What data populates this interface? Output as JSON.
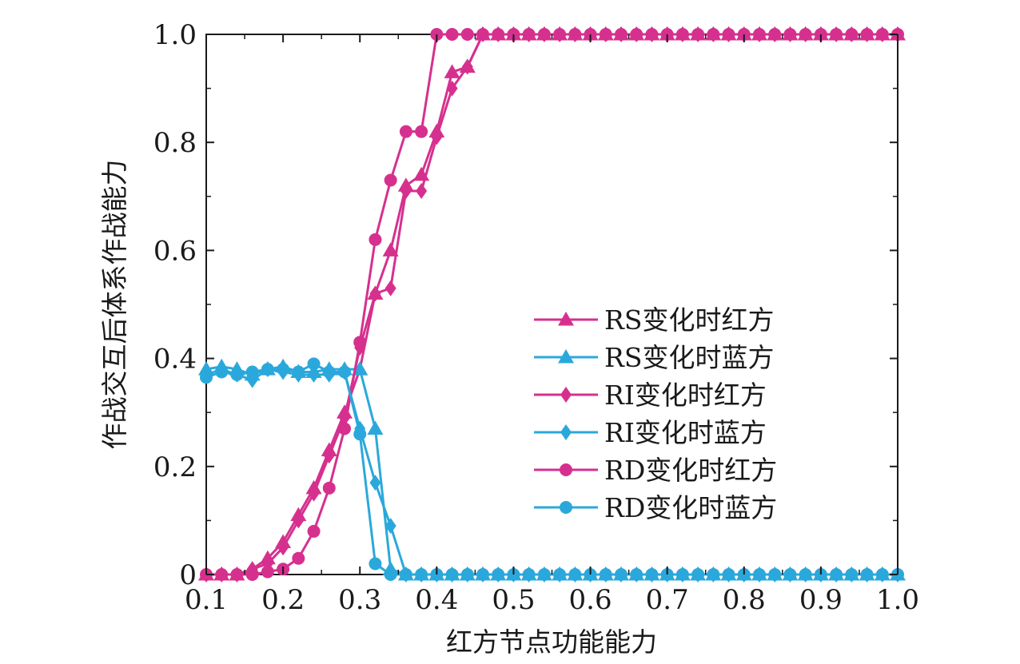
{
  "chart_data": {
    "type": "line",
    "title": "",
    "xlabel": "红方节点功能能力",
    "ylabel": "作战交互后体系作战能力",
    "xlim": [
      0.1,
      1.0
    ],
    "ylim": [
      0,
      1.0
    ],
    "xticks": [
      0.1,
      0.2,
      0.3,
      0.4,
      0.5,
      0.6,
      0.7,
      0.8,
      0.9,
      1.0
    ],
    "xtick_labels": [
      "0.1",
      "0.2",
      "0.3",
      "0.4",
      "0.5",
      "0.6",
      "0.7",
      "0.8",
      "0.9",
      "1.0"
    ],
    "yticks": [
      0,
      0.2,
      0.4,
      0.6,
      0.8,
      1.0
    ],
    "ytick_labels": [
      "0",
      "0.2",
      "0.4",
      "0.6",
      "0.8",
      "1.0"
    ],
    "grid": false,
    "legend_position": "center-right",
    "x": [
      0.1,
      0.12,
      0.14,
      0.16,
      0.18,
      0.2,
      0.22,
      0.24,
      0.26,
      0.28,
      0.3,
      0.32,
      0.34,
      0.36,
      0.38,
      0.4,
      0.42,
      0.44,
      0.46,
      0.48,
      0.5,
      0.52,
      0.54,
      0.56,
      0.58,
      0.6,
      0.62,
      0.64,
      0.66,
      0.68,
      0.7,
      0.72,
      0.74,
      0.76,
      0.78,
      0.8,
      0.82,
      0.84,
      0.86,
      0.88,
      0.9,
      0.92,
      0.94,
      0.96,
      0.98,
      1.0
    ],
    "series": [
      {
        "name": "RS变化时红方",
        "color": "#d6308f",
        "marker": "triangle",
        "values": [
          0,
          0,
          0,
          0.01,
          0.03,
          0.06,
          0.11,
          0.16,
          0.23,
          0.3,
          0.38,
          0.52,
          0.6,
          0.72,
          0.74,
          0.82,
          0.93,
          0.94,
          1.0,
          1.0,
          1.0,
          1.0,
          1.0,
          1.0,
          1.0,
          1.0,
          1.0,
          1.0,
          1.0,
          1.0,
          1.0,
          1.0,
          1.0,
          1.0,
          1.0,
          1.0,
          1.0,
          1.0,
          1.0,
          1.0,
          1.0,
          1.0,
          1.0,
          1.0,
          1.0,
          1.0
        ]
      },
      {
        "name": "RS变化时蓝方",
        "color": "#2ba8db",
        "marker": "triangle",
        "values": [
          0.38,
          0.385,
          0.38,
          0.37,
          0.38,
          0.385,
          0.375,
          0.375,
          0.38,
          0.38,
          0.38,
          0.27,
          0.01,
          0,
          0,
          0,
          0,
          0,
          0,
          0,
          0,
          0,
          0,
          0,
          0,
          0,
          0,
          0,
          0,
          0,
          0,
          0,
          0,
          0,
          0,
          0,
          0,
          0,
          0,
          0,
          0,
          0,
          0,
          0,
          0,
          0
        ]
      },
      {
        "name": "RI变化时红方",
        "color": "#d6308f",
        "marker": "diamond",
        "values": [
          0,
          0,
          0,
          0.01,
          0.02,
          0.05,
          0.1,
          0.15,
          0.22,
          0.29,
          0.42,
          0.52,
          0.53,
          0.71,
          0.71,
          0.81,
          0.9,
          0.94,
          1.0,
          1.0,
          1.0,
          1.0,
          1.0,
          1.0,
          1.0,
          1.0,
          1.0,
          1.0,
          1.0,
          1.0,
          1.0,
          1.0,
          1.0,
          1.0,
          1.0,
          1.0,
          1.0,
          1.0,
          1.0,
          1.0,
          1.0,
          1.0,
          1.0,
          1.0,
          1.0,
          1.0
        ]
      },
      {
        "name": "RI变化时蓝方",
        "color": "#2ba8db",
        "marker": "diamond",
        "values": [
          0.37,
          0.38,
          0.37,
          0.36,
          0.38,
          0.375,
          0.37,
          0.37,
          0.37,
          0.375,
          0.27,
          0.17,
          0.09,
          0,
          0,
          0,
          0,
          0,
          0,
          0,
          0,
          0,
          0,
          0,
          0,
          0,
          0,
          0,
          0,
          0,
          0,
          0,
          0,
          0,
          0,
          0,
          0,
          0,
          0,
          0,
          0,
          0,
          0,
          0,
          0,
          0
        ]
      },
      {
        "name": "RD变化时红方",
        "color": "#d6308f",
        "marker": "circle",
        "values": [
          0,
          0,
          0,
          0,
          0.005,
          0.01,
          0.03,
          0.08,
          0.16,
          0.27,
          0.43,
          0.62,
          0.73,
          0.82,
          0.82,
          1.0,
          1.0,
          1.0,
          1.0,
          1.0,
          1.0,
          1.0,
          1.0,
          1.0,
          1.0,
          1.0,
          1.0,
          1.0,
          1.0,
          1.0,
          1.0,
          1.0,
          1.0,
          1.0,
          1.0,
          1.0,
          1.0,
          1.0,
          1.0,
          1.0,
          1.0,
          1.0,
          1.0,
          1.0,
          1.0,
          1.0
        ]
      },
      {
        "name": "RD变化时蓝方",
        "color": "#2ba8db",
        "marker": "circle",
        "values": [
          0.365,
          0.375,
          0.37,
          0.375,
          0.38,
          0.38,
          0.375,
          0.39,
          0.375,
          0.375,
          0.26,
          0.02,
          0,
          0,
          0,
          0,
          0,
          0,
          0,
          0,
          0,
          0,
          0,
          0,
          0,
          0,
          0,
          0,
          0,
          0,
          0,
          0,
          0,
          0,
          0,
          0,
          0,
          0,
          0,
          0,
          0,
          0,
          0,
          0,
          0,
          0
        ]
      }
    ]
  }
}
